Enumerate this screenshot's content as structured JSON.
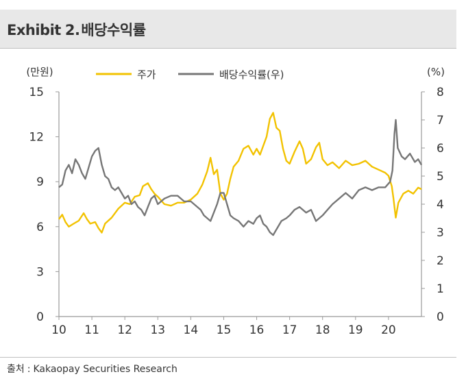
{
  "header": {
    "exhibit_label": "Exhibit",
    "exhibit_number": "2",
    "separator": ".",
    "title": "배당수익률"
  },
  "footer": {
    "source_label": "출처",
    "separator": ":",
    "source_text": "Kakaopay Securities Research"
  },
  "chart_data": {
    "type": "line",
    "title": "배당수익률",
    "left_axis": {
      "unit": "(만원)",
      "ylim": [
        0,
        15
      ],
      "ticks": [
        "0",
        "3",
        "6",
        "9",
        "12",
        "15"
      ]
    },
    "right_axis": {
      "unit": "(%)",
      "ylim": [
        0,
        8
      ],
      "ticks": [
        "0",
        "1",
        "2",
        "3",
        "4",
        "5",
        "6",
        "7",
        "8"
      ]
    },
    "x_axis": {
      "xlim": [
        10,
        21
      ],
      "ticks": [
        "10",
        "11",
        "12",
        "13",
        "14",
        "15",
        "16",
        "17",
        "18",
        "19",
        "20"
      ]
    },
    "legend_position": "top",
    "colors": {
      "price": "#f2c200",
      "yield": "#767676",
      "axis": "#999999"
    },
    "series": [
      {
        "name": "주가",
        "axis": "left",
        "points": [
          [
            10.0,
            6.5
          ],
          [
            10.1,
            6.8
          ],
          [
            10.2,
            6.3
          ],
          [
            10.3,
            6.0
          ],
          [
            10.45,
            6.2
          ],
          [
            10.6,
            6.4
          ],
          [
            10.75,
            6.9
          ],
          [
            10.85,
            6.5
          ],
          [
            10.95,
            6.2
          ],
          [
            11.1,
            6.3
          ],
          [
            11.2,
            5.9
          ],
          [
            11.3,
            5.6
          ],
          [
            11.4,
            6.2
          ],
          [
            11.6,
            6.6
          ],
          [
            11.8,
            7.2
          ],
          [
            12.0,
            7.6
          ],
          [
            12.15,
            7.5
          ],
          [
            12.3,
            8.0
          ],
          [
            12.45,
            8.1
          ],
          [
            12.55,
            8.7
          ],
          [
            12.7,
            8.9
          ],
          [
            12.8,
            8.5
          ],
          [
            12.9,
            8.2
          ],
          [
            13.0,
            8.0
          ],
          [
            13.2,
            7.5
          ],
          [
            13.4,
            7.4
          ],
          [
            13.6,
            7.6
          ],
          [
            13.8,
            7.6
          ],
          [
            14.0,
            7.8
          ],
          [
            14.2,
            8.2
          ],
          [
            14.35,
            8.8
          ],
          [
            14.5,
            9.7
          ],
          [
            14.6,
            10.6
          ],
          [
            14.7,
            9.5
          ],
          [
            14.8,
            9.8
          ],
          [
            14.9,
            8.2
          ],
          [
            15.0,
            7.8
          ],
          [
            15.1,
            8.2
          ],
          [
            15.2,
            9.2
          ],
          [
            15.3,
            10.0
          ],
          [
            15.45,
            10.4
          ],
          [
            15.6,
            11.2
          ],
          [
            15.75,
            11.4
          ],
          [
            15.9,
            10.8
          ],
          [
            16.0,
            11.2
          ],
          [
            16.1,
            10.8
          ],
          [
            16.2,
            11.4
          ],
          [
            16.3,
            12.0
          ],
          [
            16.4,
            13.2
          ],
          [
            16.5,
            13.6
          ],
          [
            16.6,
            12.6
          ],
          [
            16.7,
            12.4
          ],
          [
            16.8,
            11.2
          ],
          [
            16.9,
            10.4
          ],
          [
            17.0,
            10.2
          ],
          [
            17.15,
            11.0
          ],
          [
            17.3,
            11.7
          ],
          [
            17.4,
            11.2
          ],
          [
            17.5,
            10.2
          ],
          [
            17.65,
            10.5
          ],
          [
            17.8,
            11.3
          ],
          [
            17.9,
            11.6
          ],
          [
            18.0,
            10.5
          ],
          [
            18.15,
            10.1
          ],
          [
            18.3,
            10.3
          ],
          [
            18.5,
            9.9
          ],
          [
            18.7,
            10.4
          ],
          [
            18.9,
            10.1
          ],
          [
            19.1,
            10.2
          ],
          [
            19.3,
            10.4
          ],
          [
            19.5,
            10.0
          ],
          [
            19.7,
            9.8
          ],
          [
            19.9,
            9.6
          ],
          [
            20.0,
            9.4
          ],
          [
            20.1,
            8.7
          ],
          [
            20.15,
            7.9
          ],
          [
            20.22,
            6.6
          ],
          [
            20.3,
            7.6
          ],
          [
            20.45,
            8.2
          ],
          [
            20.6,
            8.4
          ],
          [
            20.75,
            8.2
          ],
          [
            20.9,
            8.6
          ],
          [
            21.0,
            8.5
          ]
        ]
      },
      {
        "name": "배당수익률(우)",
        "axis": "right",
        "points": [
          [
            10.0,
            4.6
          ],
          [
            10.1,
            4.7
          ],
          [
            10.2,
            5.2
          ],
          [
            10.3,
            5.4
          ],
          [
            10.4,
            5.1
          ],
          [
            10.5,
            5.6
          ],
          [
            10.6,
            5.4
          ],
          [
            10.7,
            5.1
          ],
          [
            10.8,
            4.9
          ],
          [
            10.9,
            5.3
          ],
          [
            11.0,
            5.7
          ],
          [
            11.1,
            5.9
          ],
          [
            11.2,
            6.0
          ],
          [
            11.3,
            5.4
          ],
          [
            11.4,
            5.0
          ],
          [
            11.5,
            4.9
          ],
          [
            11.6,
            4.6
          ],
          [
            11.7,
            4.5
          ],
          [
            11.8,
            4.6
          ],
          [
            11.9,
            4.4
          ],
          [
            12.0,
            4.2
          ],
          [
            12.1,
            4.3
          ],
          [
            12.2,
            4.0
          ],
          [
            12.3,
            4.1
          ],
          [
            12.4,
            3.9
          ],
          [
            12.5,
            3.8
          ],
          [
            12.6,
            3.6
          ],
          [
            12.7,
            3.9
          ],
          [
            12.8,
            4.2
          ],
          [
            12.9,
            4.3
          ],
          [
            13.0,
            4.0
          ],
          [
            13.2,
            4.2
          ],
          [
            13.4,
            4.3
          ],
          [
            13.6,
            4.3
          ],
          [
            13.8,
            4.1
          ],
          [
            14.0,
            4.1
          ],
          [
            14.2,
            3.9
          ],
          [
            14.3,
            3.8
          ],
          [
            14.4,
            3.6
          ],
          [
            14.5,
            3.5
          ],
          [
            14.6,
            3.4
          ],
          [
            14.7,
            3.7
          ],
          [
            14.8,
            4.0
          ],
          [
            14.9,
            4.4
          ],
          [
            15.0,
            4.4
          ],
          [
            15.1,
            4.0
          ],
          [
            15.2,
            3.6
          ],
          [
            15.3,
            3.5
          ],
          [
            15.45,
            3.4
          ],
          [
            15.6,
            3.2
          ],
          [
            15.75,
            3.4
          ],
          [
            15.9,
            3.3
          ],
          [
            16.0,
            3.5
          ],
          [
            16.1,
            3.6
          ],
          [
            16.2,
            3.3
          ],
          [
            16.3,
            3.2
          ],
          [
            16.4,
            3.0
          ],
          [
            16.5,
            2.9
          ],
          [
            16.6,
            3.1
          ],
          [
            16.75,
            3.4
          ],
          [
            16.9,
            3.5
          ],
          [
            17.0,
            3.6
          ],
          [
            17.15,
            3.8
          ],
          [
            17.3,
            3.9
          ],
          [
            17.5,
            3.7
          ],
          [
            17.65,
            3.8
          ],
          [
            17.8,
            3.4
          ],
          [
            17.9,
            3.5
          ],
          [
            18.0,
            3.6
          ],
          [
            18.15,
            3.8
          ],
          [
            18.3,
            4.0
          ],
          [
            18.5,
            4.2
          ],
          [
            18.7,
            4.4
          ],
          [
            18.9,
            4.2
          ],
          [
            19.1,
            4.5
          ],
          [
            19.3,
            4.6
          ],
          [
            19.5,
            4.5
          ],
          [
            19.7,
            4.6
          ],
          [
            19.9,
            4.6
          ],
          [
            20.05,
            4.8
          ],
          [
            20.12,
            5.2
          ],
          [
            20.18,
            6.5
          ],
          [
            20.22,
            7.0
          ],
          [
            20.28,
            6.0
          ],
          [
            20.4,
            5.7
          ],
          [
            20.5,
            5.6
          ],
          [
            20.65,
            5.8
          ],
          [
            20.8,
            5.5
          ],
          [
            20.9,
            5.6
          ],
          [
            21.0,
            5.4
          ]
        ]
      }
    ]
  }
}
